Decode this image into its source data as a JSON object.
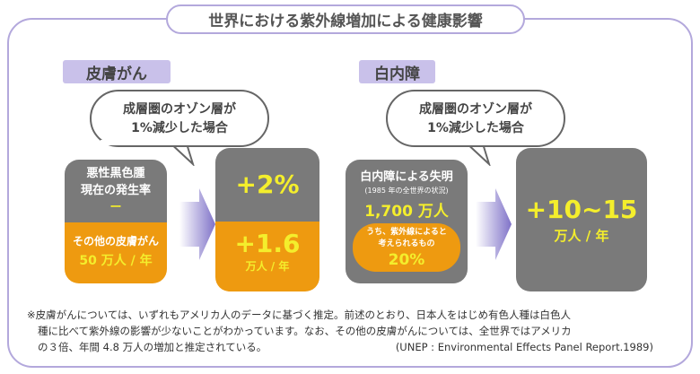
{
  "title": "世界における紫外線増加による健康影響",
  "skin": {
    "tag": "皮膚がん",
    "bubble": [
      "成層圏のオゾン層が",
      "1%減少した場合"
    ],
    "current_top": [
      "悪性黒色腫",
      "現在の発生率",
      "ー"
    ],
    "current_bottom": [
      "その他の皮膚がん",
      "50 万人 / 年"
    ],
    "result_top": "+2%",
    "result_bottom": "+1.6",
    "result_unit": "万人 / 年"
  },
  "cataract": {
    "tag": "白内障",
    "bubble": [
      "成層圏のオゾン層が",
      "1%減少した場合"
    ],
    "current_title": "白内障による失明",
    "current_sub": "(1985 年の全世界の状況)",
    "current_value": "1,700 万人",
    "pill": [
      "うち、紫外線によると",
      "考えられるもの"
    ],
    "pill_value": "20%",
    "result": "+10~15",
    "result_unit": "万人 / 年"
  },
  "footnote": [
    "※皮膚がんについては、いずれもアメリカ人のデータに基づく推定。前述のとおり、日本人をはじめ有色人種は白色人",
    "種に比べて紫外線の影響が少ないことがわかっています。なお、その他の皮膚がんについては、全世界ではアメリカ",
    "の３倍、年間 4.8 万人の増加と推定されている。"
  ],
  "source": "(UNEP : Environmental Effects Panel Report.1989)"
}
